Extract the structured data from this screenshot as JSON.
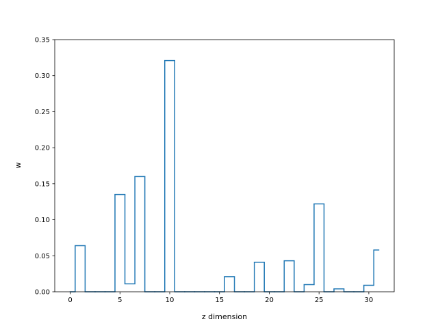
{
  "chart_data": {
    "type": "line",
    "drawstyle": "steps-mid",
    "title": "",
    "xlabel": "z dimension",
    "ylabel": "w",
    "xlim": [
      -1.55,
      32.55
    ],
    "ylim": [
      0.0,
      0.35
    ],
    "xticks": [
      0,
      5,
      10,
      15,
      20,
      25,
      30
    ],
    "yticks": [
      0.0,
      0.05,
      0.1,
      0.15,
      0.2,
      0.25,
      0.3,
      0.35
    ],
    "ytick_labels": [
      "0.00",
      "0.05",
      "0.10",
      "0.15",
      "0.20",
      "0.25",
      "0.30",
      "0.35"
    ],
    "grid": false,
    "series": [
      {
        "color": "#1f77b4",
        "x": [
          0,
          1,
          2,
          3,
          4,
          5,
          6,
          7,
          8,
          9,
          10,
          11,
          12,
          13,
          14,
          15,
          16,
          17,
          18,
          19,
          20,
          21,
          22,
          23,
          24,
          25,
          26,
          27,
          28,
          29,
          30,
          31
        ],
        "y": [
          0.0,
          0.064,
          0.0,
          0.0,
          0.0,
          0.135,
          0.011,
          0.16,
          0.0,
          0.0,
          0.321,
          0.0,
          0.0,
          0.0,
          0.0,
          0.0,
          0.021,
          0.0,
          0.0,
          0.041,
          0.0,
          0.0,
          0.043,
          0.0,
          0.01,
          0.122,
          0.0,
          0.004,
          0.0,
          0.0,
          0.009,
          0.058
        ]
      }
    ]
  }
}
